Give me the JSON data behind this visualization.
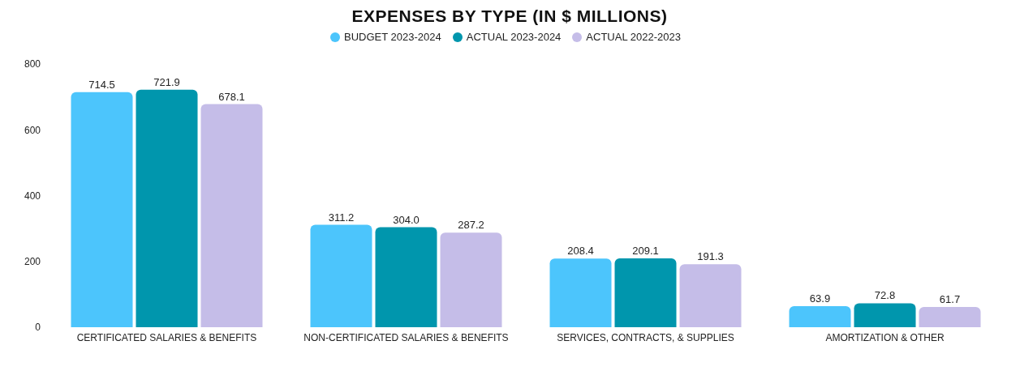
{
  "chart_data": {
    "type": "bar",
    "title": "EXPENSES BY TYPE (IN $ MILLIONS)",
    "categories": [
      "CERTIFICATED SALARIES & BENEFITS",
      "NON-CERTIFICATED SALARIES & BENEFITS",
      "SERVICES, CONTRACTS, & SUPPLIES",
      "AMORTIZATION & OTHER"
    ],
    "series": [
      {
        "name": "BUDGET 2023-2024",
        "color": "#4cc5fc",
        "values": [
          714.5,
          311.2,
          208.4,
          63.9
        ]
      },
      {
        "name": "ACTUAL 2023-2024",
        "color": "#0096ad",
        "values": [
          721.9,
          304.0,
          209.1,
          72.8
        ]
      },
      {
        "name": "ACTUAL 2022-2023",
        "color": "#c5bde8",
        "values": [
          678.1,
          287.2,
          191.3,
          61.7
        ]
      }
    ],
    "value_labels": [
      [
        "714.5",
        "311.2",
        "208.4",
        "63.9"
      ],
      [
        "721.9",
        "304.0",
        "209.1",
        "72.8"
      ],
      [
        "678.1",
        "287.2",
        "191.3",
        "61.7"
      ]
    ],
    "ylim": [
      0,
      800
    ],
    "yticks": [
      0,
      200,
      400,
      600,
      800
    ],
    "grid": false,
    "legend": "top"
  }
}
